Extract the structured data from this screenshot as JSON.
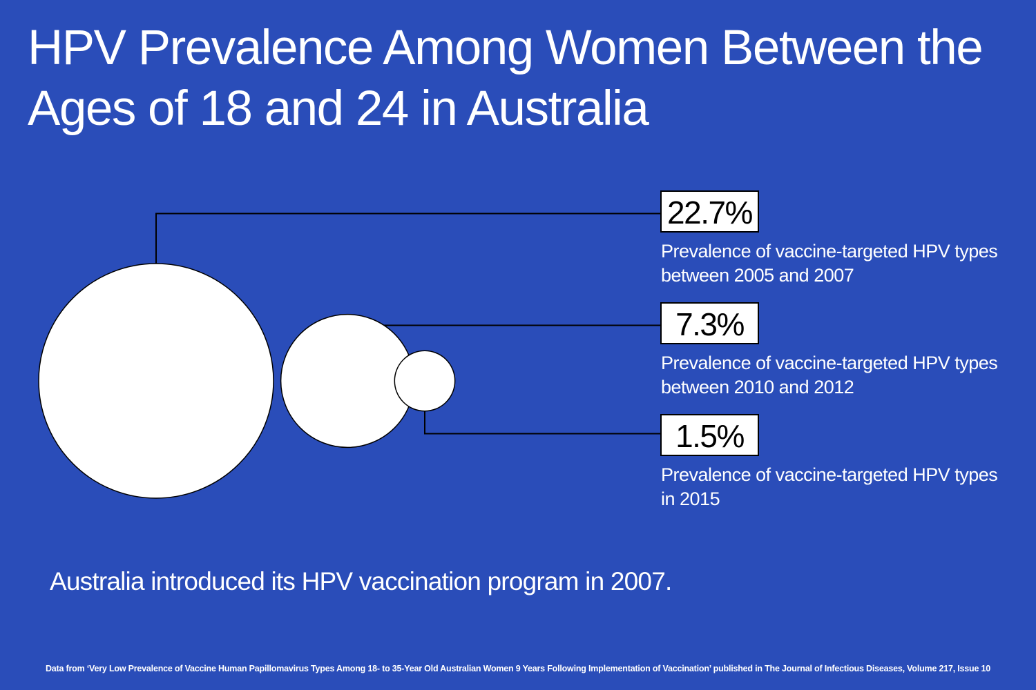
{
  "title": "HPV Prevalence Among Women Between the Ages of 18 and 24 in Australia",
  "colors": {
    "background": "#2a4db9",
    "circle_fill": "#ffffff",
    "text": "#ffffff",
    "box_text": "#000000",
    "line": "#000000"
  },
  "chart_data": {
    "type": "bubble",
    "title": "HPV Prevalence Among Women Between the Ages of 18 and 24 in Australia",
    "unit": "%",
    "series": [
      {
        "value": 22.7,
        "value_label": "22.7%",
        "description_lines": [
          "Prevalence of vaccine-targeted HPV types",
          "between 2005 and 2007"
        ]
      },
      {
        "value": 7.3,
        "value_label": "7.3%",
        "description_lines": [
          "Prevalence of vaccine-targeted HPV types",
          "between 2010 and 2012"
        ]
      },
      {
        "value": 1.5,
        "value_label": "1.5%",
        "description_lines": [
          "Prevalence of vaccine-targeted HPV types",
          "in 2015"
        ]
      }
    ]
  },
  "note": "Australia introduced its HPV vaccination program in 2007.",
  "source": "Data from ‘Very Low Prevalence of Vaccine Human Papillomavirus Types Among 18- to 35-Year Old Australian Women 9 Years Following Implementation of Vaccination’ published in The Journal of Infectious Diseases, Volume 217, Issue 10"
}
